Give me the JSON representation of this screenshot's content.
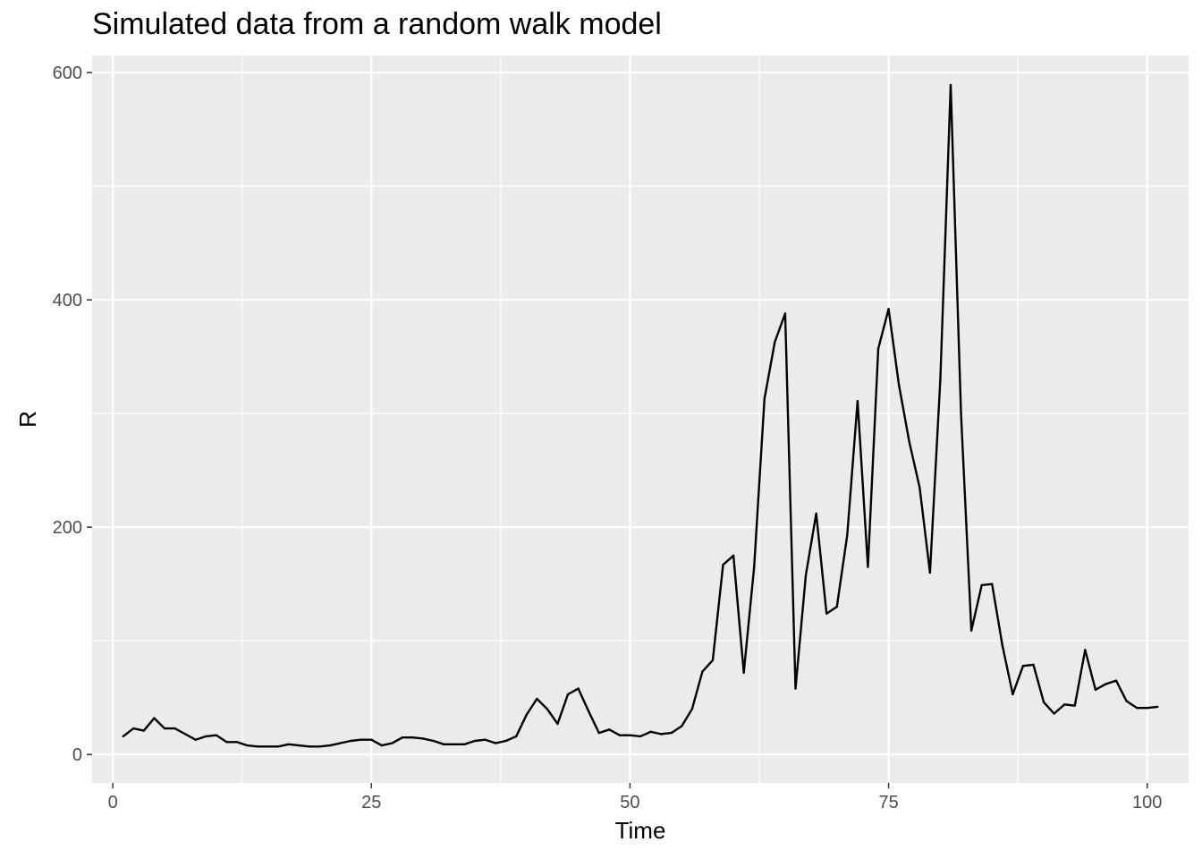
{
  "chart_data": {
    "type": "line",
    "title": "Simulated data from a random walk model",
    "xlabel": "Time",
    "ylabel": "R",
    "xlim": [
      -2,
      104
    ],
    "ylim": [
      -25,
      615
    ],
    "x_ticks": [
      0,
      25,
      50,
      75,
      100
    ],
    "x_tick_labels": [
      "0",
      "25",
      "50",
      "75",
      "100"
    ],
    "y_ticks": [
      0,
      200,
      400,
      600
    ],
    "y_tick_labels": [
      "0",
      "200",
      "400",
      "600"
    ],
    "x_minor_ticks": [
      12.5,
      37.5,
      62.5,
      87.5
    ],
    "y_minor_ticks": [
      100,
      300,
      500
    ],
    "grid": true,
    "colors": {
      "panel": "#ebebeb",
      "grid": "#ffffff",
      "line": "#000000",
      "tick_text": "#4d4d4d",
      "tick_mark": "#333333"
    },
    "series": [
      {
        "x": [
          1,
          2,
          3,
          4,
          5,
          6,
          7,
          8,
          9,
          10,
          11,
          12,
          13,
          14,
          15,
          16,
          17,
          18,
          19,
          20,
          21,
          22,
          23,
          24,
          25,
          26,
          27,
          28,
          29,
          30,
          31,
          32,
          33,
          34,
          35,
          36,
          37,
          38,
          39,
          40,
          41,
          42,
          43,
          44,
          45,
          46,
          47,
          48,
          49,
          50,
          51,
          52,
          53,
          54,
          55,
          56,
          57,
          58,
          59,
          60,
          61,
          62,
          63,
          64,
          65,
          66,
          67,
          68,
          69,
          70,
          71,
          72,
          73,
          74,
          75,
          76,
          77,
          78,
          79,
          80,
          81,
          82,
          83,
          84,
          85,
          86,
          87,
          88,
          89,
          90,
          91,
          92,
          93,
          94,
          95,
          96,
          97,
          98,
          99,
          100,
          101
        ],
        "values": [
          16,
          23,
          21,
          32,
          23,
          23,
          18,
          13,
          16,
          17,
          11,
          11,
          8,
          7,
          7,
          7,
          9,
          8,
          7,
          7,
          8,
          10,
          12,
          13,
          13,
          8,
          10,
          15,
          15,
          14,
          12,
          9,
          9,
          9,
          12,
          13,
          10,
          12,
          16,
          35,
          49,
          40,
          27,
          53,
          58,
          38,
          19,
          22,
          17,
          17,
          16,
          20,
          18,
          19,
          25,
          40,
          73,
          83,
          167,
          175,
          72,
          165,
          313,
          363,
          388,
          58,
          158,
          212,
          124,
          130,
          193,
          311,
          165,
          357,
          392,
          325,
          275,
          235,
          160,
          330,
          589,
          300,
          109,
          149,
          150,
          96,
          53,
          78,
          79,
          46,
          36,
          44,
          43,
          92,
          57,
          62,
          65,
          47,
          41,
          41,
          42
        ]
      }
    ]
  }
}
